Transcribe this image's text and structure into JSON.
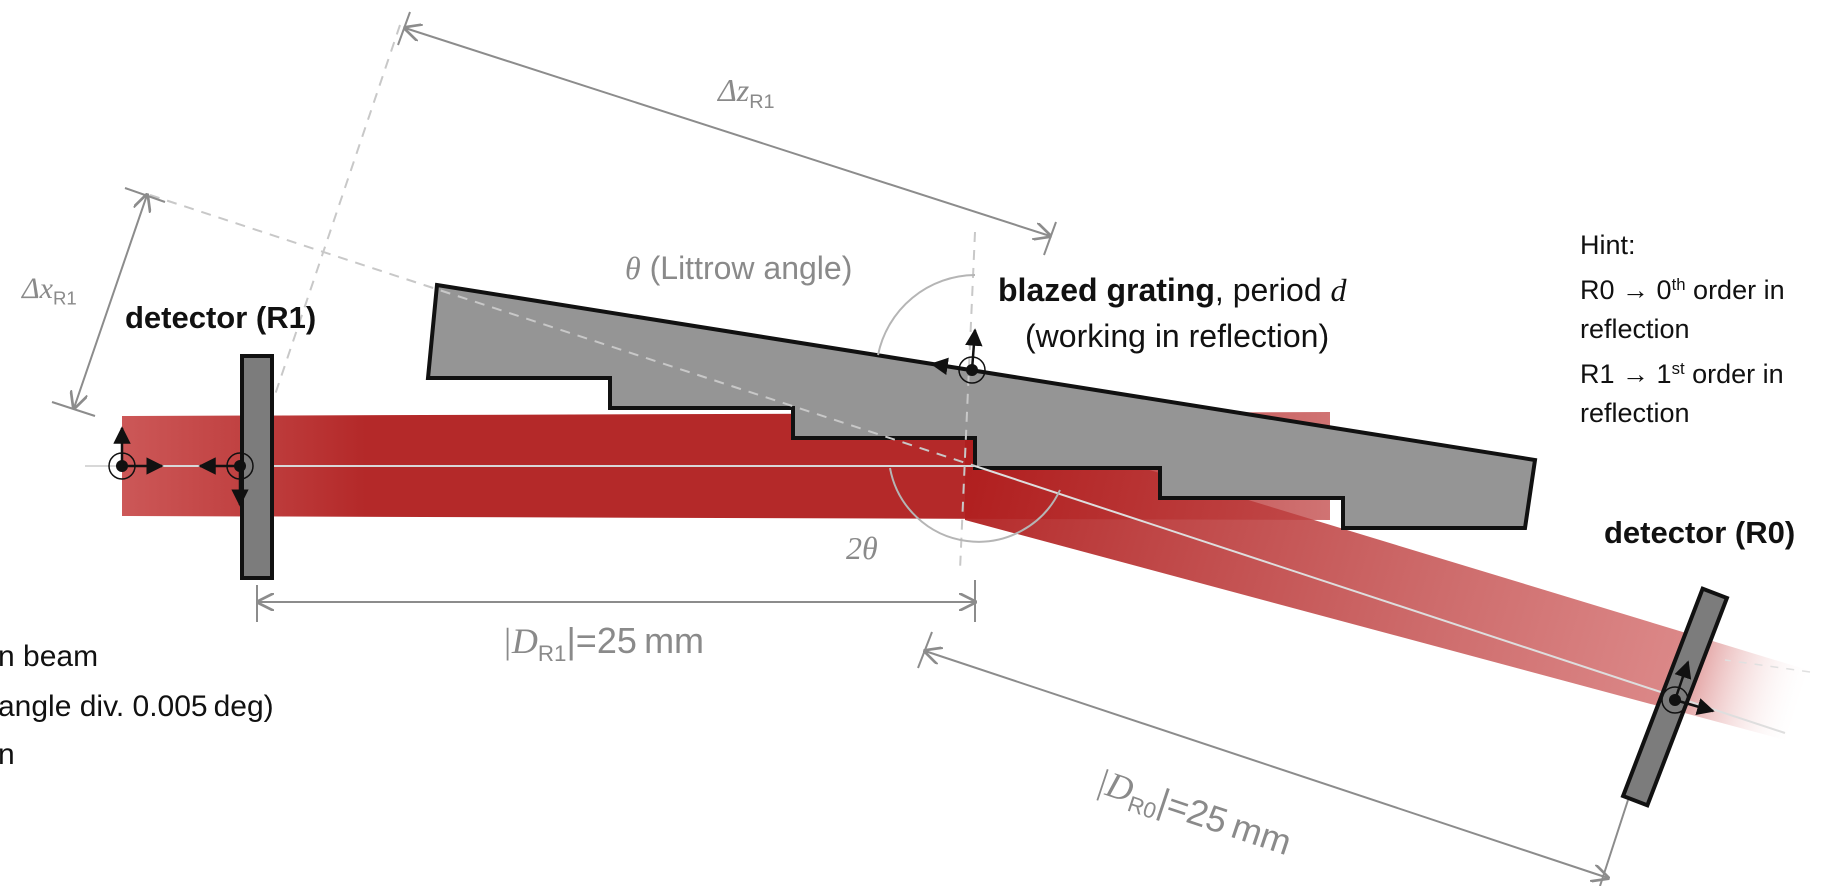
{
  "labels": {
    "delta_z_sym": "Δz",
    "delta_z_sub": "R1",
    "theta_sym": "θ",
    "theta_text": " (Littrow angle)",
    "grating_bold": "blazed grating",
    "grating_rest": ", period ",
    "grating_d": "d",
    "grating_line2": "(working in reflection)",
    "delta_x_sym": "Δx",
    "delta_x_sub": "R1",
    "detector_r1": "detector (R1)",
    "detector_r0": "detector (R0)",
    "two_theta_num": "2",
    "two_theta_sym": "θ",
    "dr1_pre": "|D",
    "dr1_sub": "R1",
    "dr1_post": "|=25 mm",
    "dr0_pre": "|D",
    "dr0_sub": "R0",
    "dr0_post": "|=25 mm",
    "beam_line1": "n beam",
    "beam_line2": "angle div. 0.005 deg)",
    "beam_line3": "n"
  },
  "hint": {
    "title": "Hint:",
    "r0_label": "R0",
    "arrow": "→",
    "r0_order_num": "0",
    "r0_order_sup": "th",
    "r0_order_rest": " order in",
    "r0_line2": "reflection",
    "r1_label": "R1",
    "r1_order_num": "1",
    "r1_order_sup": "st",
    "r1_order_rest": " order in",
    "r1_line2": "reflection"
  },
  "colors": {
    "beam": "#b01e1e",
    "grating_fill": "#959595",
    "detector_fill": "#7c7c7c",
    "dimension": "#8c8c8c",
    "outline": "#111111"
  }
}
